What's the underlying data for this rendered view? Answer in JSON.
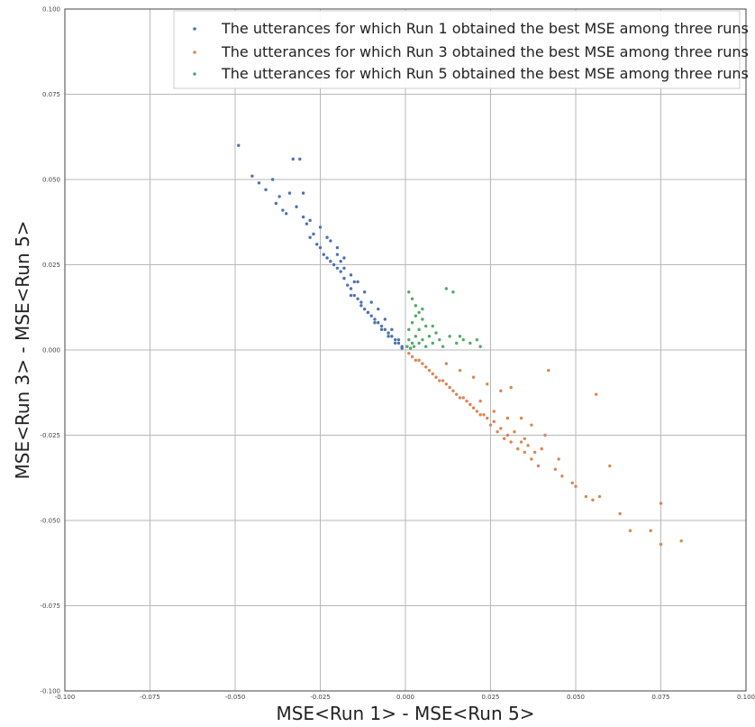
{
  "chart_data": {
    "type": "scatter",
    "xlabel": "MSE<Run 1> - MSE<Run 5>",
    "ylabel": "MSE<Run 3> - MSE<Run 5>",
    "xlim": [
      -0.1,
      0.1
    ],
    "ylim": [
      -0.1,
      0.1
    ],
    "x_ticks": [
      "-0.100",
      "-0.075",
      "-0.050",
      "-0.025",
      "0.000",
      "0.025",
      "0.050",
      "0.075",
      "0.100"
    ],
    "y_ticks": [
      "0.100",
      "0.075",
      "0.050",
      "0.025",
      "0.000",
      "-0.025",
      "-0.050",
      "-0.075",
      "-0.100"
    ],
    "grid": true,
    "legend_position": "top-right",
    "series": [
      {
        "name": "The utterances for which Run 1 obtained the best MSE among three runs",
        "color": "#4c72b0",
        "x": [
          -0.049,
          -0.045,
          -0.043,
          -0.041,
          -0.039,
          -0.038,
          -0.037,
          -0.036,
          -0.035,
          -0.034,
          -0.033,
          -0.032,
          -0.031,
          -0.03,
          -0.03,
          -0.029,
          -0.028,
          -0.028,
          -0.027,
          -0.026,
          -0.025,
          -0.025,
          -0.024,
          -0.023,
          -0.023,
          -0.022,
          -0.021,
          -0.02,
          -0.02,
          -0.019,
          -0.018,
          -0.018,
          -0.017,
          -0.016,
          -0.015,
          -0.015,
          -0.014,
          -0.013,
          -0.012,
          -0.011,
          -0.01,
          -0.009,
          -0.008,
          -0.007,
          -0.006,
          -0.005,
          -0.004,
          -0.003,
          -0.002,
          -0.001,
          -0.02,
          -0.018,
          -0.016,
          -0.014,
          -0.012,
          -0.01,
          -0.008,
          -0.006,
          -0.004,
          -0.002,
          -0.016,
          -0.013,
          -0.011,
          -0.009,
          -0.007,
          -0.005,
          -0.003,
          -0.001,
          -0.022,
          -0.019
        ],
        "y": [
          0.06,
          0.051,
          0.049,
          0.047,
          0.05,
          0.043,
          0.045,
          0.041,
          0.04,
          0.046,
          0.056,
          0.042,
          0.056,
          0.039,
          0.046,
          0.037,
          0.033,
          0.038,
          0.034,
          0.031,
          0.03,
          0.036,
          0.028,
          0.027,
          0.033,
          0.026,
          0.025,
          0.024,
          0.03,
          0.023,
          0.021,
          0.027,
          0.019,
          0.018,
          0.016,
          0.02,
          0.015,
          0.014,
          0.012,
          0.011,
          0.01,
          0.009,
          0.008,
          0.007,
          0.006,
          0.005,
          0.004,
          0.003,
          0.002,
          0.001,
          0.028,
          0.024,
          0.022,
          0.02,
          0.017,
          0.014,
          0.012,
          0.009,
          0.006,
          0.003,
          0.016,
          0.013,
          0.011,
          0.008,
          0.006,
          0.004,
          0.002,
          0.0005,
          0.032,
          0.026
        ]
      },
      {
        "name": "The utterances for which Run 3 obtained the best MSE among three runs",
        "color": "#dd8452",
        "x": [
          0.001,
          0.002,
          0.003,
          0.004,
          0.005,
          0.006,
          0.007,
          0.008,
          0.009,
          0.01,
          0.011,
          0.012,
          0.013,
          0.014,
          0.015,
          0.016,
          0.017,
          0.018,
          0.019,
          0.02,
          0.021,
          0.022,
          0.023,
          0.024,
          0.025,
          0.026,
          0.027,
          0.028,
          0.029,
          0.03,
          0.031,
          0.032,
          0.033,
          0.034,
          0.035,
          0.036,
          0.037,
          0.038,
          0.039,
          0.04,
          0.042,
          0.044,
          0.045,
          0.046,
          0.049,
          0.05,
          0.053,
          0.055,
          0.056,
          0.057,
          0.06,
          0.063,
          0.066,
          0.072,
          0.075,
          0.075,
          0.081,
          0.02,
          0.024,
          0.028,
          0.031,
          0.034,
          0.037,
          0.041,
          0.012,
          0.016,
          0.022,
          0.026,
          0.03,
          0.035
        ],
        "y": [
          -0.001,
          -0.002,
          -0.003,
          -0.003,
          -0.004,
          -0.005,
          -0.006,
          -0.007,
          -0.008,
          -0.009,
          -0.009,
          -0.01,
          -0.011,
          -0.012,
          -0.013,
          -0.014,
          -0.014,
          -0.015,
          -0.016,
          -0.017,
          -0.018,
          -0.019,
          -0.019,
          -0.02,
          -0.022,
          -0.021,
          -0.024,
          -0.023,
          -0.026,
          -0.025,
          -0.027,
          -0.024,
          -0.029,
          -0.027,
          -0.03,
          -0.028,
          -0.032,
          -0.03,
          -0.034,
          -0.029,
          -0.006,
          -0.035,
          -0.032,
          -0.037,
          -0.039,
          -0.04,
          -0.043,
          -0.044,
          -0.013,
          -0.043,
          -0.034,
          -0.048,
          -0.053,
          -0.053,
          -0.045,
          -0.057,
          -0.056,
          -0.008,
          -0.01,
          -0.012,
          -0.011,
          -0.02,
          -0.022,
          -0.025,
          -0.004,
          -0.006,
          -0.015,
          -0.018,
          -0.02,
          -0.026
        ]
      },
      {
        "name": "The utterances for which Run 5 obtained the best MSE among three runs",
        "color": "#55a868",
        "x": [
          0.0005,
          0.001,
          0.001,
          0.002,
          0.002,
          0.003,
          0.003,
          0.004,
          0.004,
          0.005,
          0.005,
          0.006,
          0.007,
          0.008,
          0.009,
          0.01,
          0.011,
          0.012,
          0.013,
          0.014,
          0.015,
          0.016,
          0.017,
          0.019,
          0.021,
          0.022,
          0.001,
          0.002,
          0.003,
          0.004,
          0.005,
          0.006,
          0.008,
          0.0015,
          0.0025
        ],
        "y": [
          0.001,
          0.003,
          0.006,
          0.002,
          0.008,
          0.004,
          0.01,
          0.002,
          0.006,
          0.003,
          0.012,
          0.001,
          0.004,
          0.002,
          0.005,
          0.003,
          0.001,
          0.018,
          0.004,
          0.017,
          0.002,
          0.004,
          0.003,
          0.002,
          0.003,
          0.001,
          0.017,
          0.015,
          0.013,
          0.011,
          0.009,
          0.007,
          0.007,
          0.0005,
          0.001
        ]
      }
    ]
  }
}
